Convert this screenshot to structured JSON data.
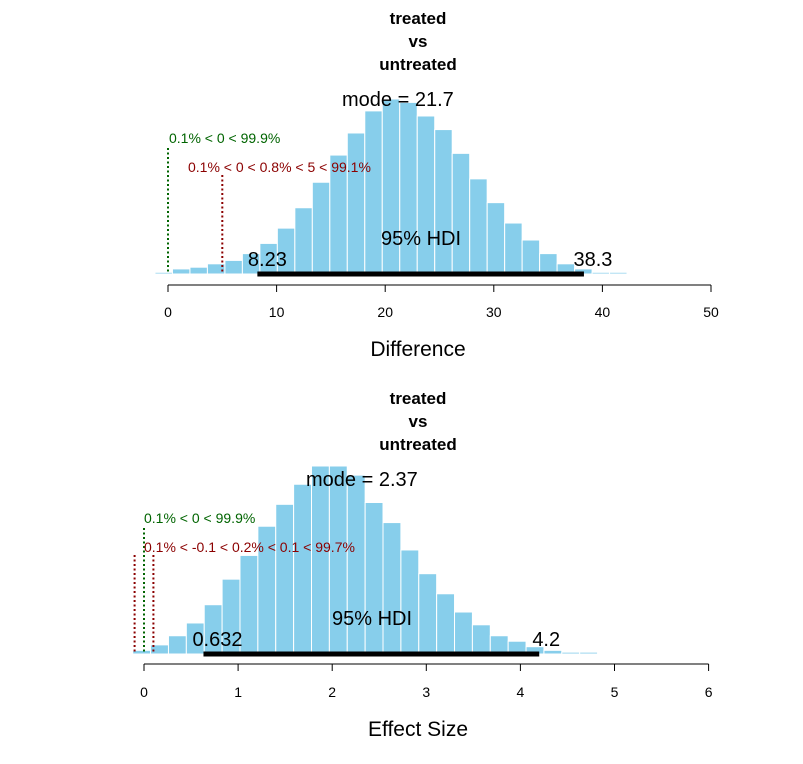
{
  "colors": {
    "bar": "#87CEEB",
    "comp_line": "#006400",
    "rope_line": "#8B0000",
    "hdi_line": "#000000"
  },
  "chart_data": [
    {
      "type": "bar",
      "title_lines": [
        "treated",
        "vs",
        "untreated"
      ],
      "xlabel": "Difference",
      "ylabel": "",
      "xlim": [
        -1.2,
        51.5
      ],
      "xticks": [
        0,
        10,
        20,
        30,
        40,
        50
      ],
      "bin_width": 1.61,
      "bin_start": -1.2,
      "counts": [
        1,
        3,
        4,
        6,
        8,
        12,
        18,
        27,
        39,
        54,
        70,
        83,
        96,
        103,
        101,
        93,
        85,
        71,
        56,
        42,
        30,
        20,
        12,
        6,
        3,
        1,
        1
      ],
      "mode_label": "mode",
      "mode_value": "21.7",
      "hdi_label": "95% HDI",
      "hdi_low": 8.23,
      "hdi_high": 38.3,
      "hdi_low_text": "8.23",
      "hdi_high_text": "38.3",
      "comp_value": 0,
      "comp_text": "0.1% < 0 < 99.9%",
      "rope_value": 5,
      "rope_text": "0.1% < 0 < 0.8% < 5 < 99.1%"
    },
    {
      "type": "bar",
      "title_lines": [
        "treated",
        "vs",
        "untreated"
      ],
      "xlabel": "Effect Size",
      "ylabel": "",
      "xlim": [
        -0.12,
        5.96
      ],
      "xticks": [
        0,
        1,
        2,
        3,
        4,
        5,
        6
      ],
      "bin_width": 0.19,
      "bin_start": -0.12,
      "counts": [
        2,
        5,
        10,
        17,
        27,
        41,
        54,
        70,
        82,
        93,
        103,
        103,
        98,
        83,
        72,
        57,
        44,
        33,
        23,
        16,
        10,
        7,
        4,
        2,
        1,
        1
      ],
      "mode_label": "mode",
      "mode_value": "2.37",
      "hdi_label": "95% HDI",
      "hdi_low": 0.632,
      "hdi_high": 4.2,
      "hdi_low_text": "0.632",
      "hdi_high_text": "4.2",
      "comp_value": 0,
      "comp_text": "0.1% < 0 < 99.9%",
      "rope_value": [
        -0.1,
        0.1
      ],
      "rope_text": "0.1% < -0.1 < 0.2% < 0.1 < 99.7%"
    }
  ]
}
